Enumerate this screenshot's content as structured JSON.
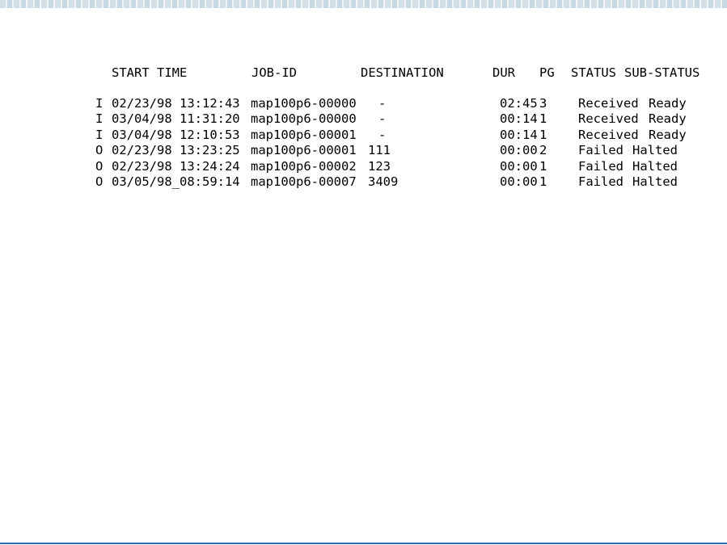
{
  "colors": {
    "banner": "#d3e0e8",
    "rule": "#2a6db5"
  },
  "header": {
    "start_time": "START TIME",
    "job_id": "JOB-ID",
    "destination": "DESTINATION",
    "dur": "DUR",
    "pg": "PG",
    "status": "STATUS",
    "sub_status": "SUB-STATUS"
  },
  "rows": [
    {
      "dir": "I",
      "start": "02/23/98 13:12:43",
      "job": "map100p6-00000",
      "dest": "-",
      "dur": "02:45",
      "pg": "3",
      "status": "Received",
      "sub": "Ready"
    },
    {
      "dir": "I",
      "start": "03/04/98 11:31:20",
      "job": "map100p6-00000",
      "dest": "-",
      "dur": "00:14",
      "pg": "1",
      "status": "Received",
      "sub": "Ready"
    },
    {
      "dir": "I",
      "start": "03/04/98 12:10:53",
      "job": "map100p6-00001",
      "dest": "-",
      "dur": "00:14",
      "pg": "1",
      "status": "Received",
      "sub": "Ready"
    },
    {
      "dir": "O",
      "start": "02/23/98 13:23:25",
      "job": "map100p6-00001",
      "dest": "111",
      "dur": "00:00",
      "pg": "2",
      "status": "Failed",
      "sub": "Halted"
    },
    {
      "dir": "O",
      "start": "02/23/98 13:24:24",
      "job": "map100p6-00002",
      "dest": "123",
      "dur": "00:00",
      "pg": "1",
      "status": "Failed",
      "sub": "Halted"
    },
    {
      "dir": "O",
      "start": "03/05/98_08:59:14",
      "job": "map100p6-00007",
      "dest": "3409",
      "dur": "00:00",
      "pg": "1",
      "status": "Failed",
      "sub": "Halted"
    }
  ]
}
